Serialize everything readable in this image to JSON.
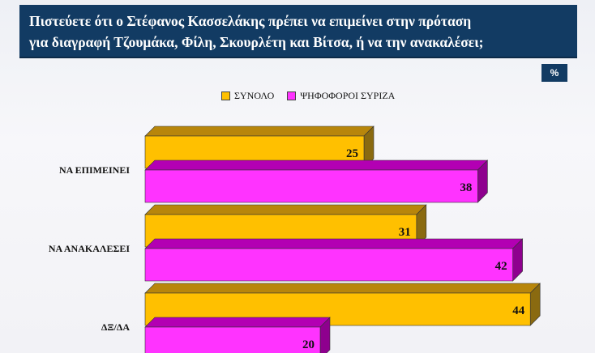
{
  "header": {
    "title_lines": [
      "Πιστεύετε ότι ο Στέφανος Κασσελάκης πρέπει να επιμείνει στην πρόταση",
      "για διαγραφή Τζουμάκα, Φίλη, Σκουρλέτη και Βίτσα, ή να την ανακαλέσει;"
    ],
    "unit": "%"
  },
  "chart_data": {
    "type": "bar",
    "orientation": "horizontal",
    "categories": [
      "ΝΑ ΕΠΙΜΕΙΝΕΙ",
      "ΝΑ ΑΝΑΚΑΛΕΣΕΙ",
      "ΔΞ/ΔΑ"
    ],
    "series": [
      {
        "name": "ΣΥΝΟΛΟ",
        "values": [
          25,
          31,
          44
        ],
        "color": "#ffc000",
        "top_color": "#b8860b",
        "side_color": "#8a6a10"
      },
      {
        "name": "ΨΗΦΟΦΟΡΟΙ ΣΥΡΙΖΑ",
        "values": [
          38,
          42,
          20
        ],
        "color": "#ff33ff",
        "top_color": "#b300b3",
        "side_color": "#8e008e"
      }
    ],
    "xlim": [
      0,
      50
    ],
    "legend": "top",
    "grid": false,
    "data_labels": true
  }
}
